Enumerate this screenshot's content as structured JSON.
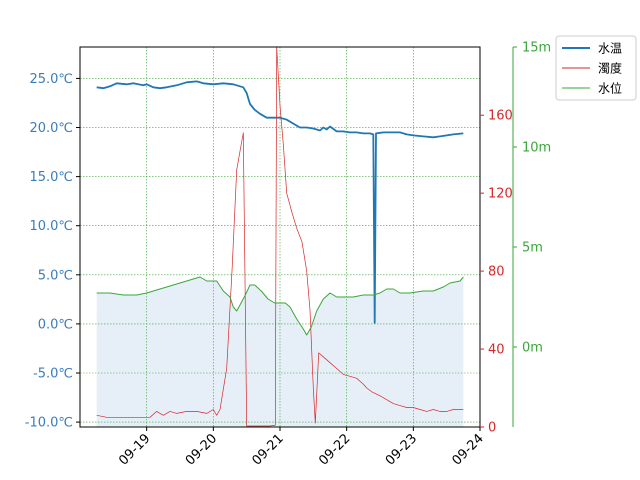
{
  "chart_data": {
    "type": "line",
    "x_ticks": [
      "09-19",
      "09-20",
      "09-21",
      "09-22",
      "09-23",
      "09-24"
    ],
    "x_range": [
      "09-18",
      "09-24"
    ],
    "grid": true,
    "legend_placement": "top-right",
    "axes": {
      "temperature": {
        "ticks": [
          "25.0℃",
          "20.0℃",
          "15.0℃",
          "10.0℃",
          "5.0℃",
          "0.0℃",
          "-5.0℃",
          "-10.0℃"
        ],
        "tick_values": [
          25,
          20,
          15,
          10,
          5,
          0,
          -5,
          -10
        ],
        "range": [
          -10.5,
          28.2
        ],
        "color": "#3b7dba"
      },
      "turbidity": {
        "ticks": [
          "160",
          "120",
          "80",
          "40",
          "0"
        ],
        "tick_values": [
          160,
          120,
          80,
          40,
          0
        ],
        "range": [
          0,
          195
        ],
        "color": "#d62728"
      },
      "water_level": {
        "ticks": [
          "15m",
          "10m",
          "5m",
          "0m"
        ],
        "tick_values": [
          15,
          10,
          5,
          0
        ],
        "range": [
          -4,
          15
        ],
        "color": "#3aa63a"
      }
    },
    "series": [
      {
        "name": "水温",
        "axis": "temperature",
        "color": "#1f77b4",
        "points": [
          [
            0.25,
            24.1
          ],
          [
            0.35,
            24.0
          ],
          [
            0.45,
            24.2
          ],
          [
            0.55,
            24.5
          ],
          [
            0.7,
            24.4
          ],
          [
            0.8,
            24.5
          ],
          [
            0.95,
            24.3
          ],
          [
            1.0,
            24.4
          ],
          [
            1.1,
            24.1
          ],
          [
            1.2,
            24.0
          ],
          [
            1.3,
            24.1
          ],
          [
            1.45,
            24.3
          ],
          [
            1.6,
            24.6
          ],
          [
            1.75,
            24.7
          ],
          [
            1.85,
            24.5
          ],
          [
            2.0,
            24.4
          ],
          [
            2.15,
            24.5
          ],
          [
            2.3,
            24.4
          ],
          [
            2.45,
            24.1
          ],
          [
            2.5,
            23.5
          ],
          [
            2.55,
            22.4
          ],
          [
            2.62,
            21.8
          ],
          [
            2.7,
            21.4
          ],
          [
            2.8,
            21.0
          ],
          [
            2.9,
            21.0
          ],
          [
            3.0,
            21.0
          ],
          [
            3.1,
            20.8
          ],
          [
            3.2,
            20.4
          ],
          [
            3.3,
            20.0
          ],
          [
            3.4,
            20.0
          ],
          [
            3.5,
            19.9
          ],
          [
            3.6,
            19.7
          ],
          [
            3.65,
            20.0
          ],
          [
            3.7,
            19.8
          ],
          [
            3.75,
            20.1
          ],
          [
            3.85,
            19.6
          ],
          [
            3.95,
            19.6
          ],
          [
            4.05,
            19.5
          ],
          [
            4.15,
            19.5
          ],
          [
            4.25,
            19.4
          ],
          [
            4.35,
            19.4
          ],
          [
            4.4,
            19.3
          ],
          [
            4.42,
            0.1
          ],
          [
            4.44,
            19.4
          ],
          [
            4.55,
            19.5
          ],
          [
            4.65,
            19.5
          ],
          [
            4.8,
            19.5
          ],
          [
            4.9,
            19.3
          ],
          [
            5.0,
            19.2
          ],
          [
            5.15,
            19.1
          ],
          [
            5.3,
            19.0
          ],
          [
            5.4,
            19.1
          ],
          [
            5.5,
            19.2
          ],
          [
            5.6,
            19.3
          ],
          [
            5.75,
            19.4
          ]
        ]
      },
      {
        "name": "濁度",
        "axis": "turbidity",
        "color": "#d62728",
        "points": [
          [
            0.25,
            6
          ],
          [
            0.4,
            5
          ],
          [
            0.6,
            5
          ],
          [
            0.8,
            5
          ],
          [
            0.95,
            5
          ],
          [
            1.05,
            5
          ],
          [
            1.15,
            8
          ],
          [
            1.25,
            6
          ],
          [
            1.35,
            8
          ],
          [
            1.45,
            7
          ],
          [
            1.6,
            8
          ],
          [
            1.75,
            8
          ],
          [
            1.9,
            7
          ],
          [
            2.0,
            9
          ],
          [
            2.05,
            6
          ],
          [
            2.1,
            9
          ],
          [
            2.2,
            30
          ],
          [
            2.28,
            80
          ],
          [
            2.35,
            132
          ],
          [
            2.45,
            151
          ],
          [
            2.5,
            0.5
          ],
          [
            2.62,
            0.5
          ],
          [
            2.72,
            0.5
          ],
          [
            2.85,
            0.5
          ],
          [
            2.93,
            1
          ],
          [
            2.95,
            195
          ],
          [
            3.0,
            165
          ],
          [
            3.05,
            145
          ],
          [
            3.1,
            120
          ],
          [
            3.18,
            110
          ],
          [
            3.25,
            102
          ],
          [
            3.33,
            95
          ],
          [
            3.4,
            80
          ],
          [
            3.45,
            60
          ],
          [
            3.5,
            20
          ],
          [
            3.53,
            2
          ],
          [
            3.58,
            38
          ],
          [
            3.65,
            36
          ],
          [
            3.75,
            33
          ],
          [
            3.85,
            30
          ],
          [
            3.95,
            27
          ],
          [
            4.05,
            26
          ],
          [
            4.15,
            25
          ],
          [
            4.25,
            22
          ],
          [
            4.3,
            20
          ],
          [
            4.38,
            18
          ],
          [
            4.5,
            16
          ],
          [
            4.6,
            14
          ],
          [
            4.7,
            12
          ],
          [
            4.8,
            11
          ],
          [
            4.9,
            10
          ],
          [
            5.0,
            10
          ],
          [
            5.1,
            9
          ],
          [
            5.2,
            8
          ],
          [
            5.3,
            9
          ],
          [
            5.4,
            8
          ],
          [
            5.5,
            8
          ],
          [
            5.6,
            9
          ],
          [
            5.75,
            9
          ]
        ]
      },
      {
        "name": "水位",
        "axis": "water_level",
        "color": "#3aa63a",
        "points": [
          [
            0.25,
            2.7
          ],
          [
            0.45,
            2.7
          ],
          [
            0.65,
            2.6
          ],
          [
            0.85,
            2.6
          ],
          [
            1.0,
            2.7
          ],
          [
            1.2,
            2.9
          ],
          [
            1.4,
            3.1
          ],
          [
            1.6,
            3.3
          ],
          [
            1.7,
            3.4
          ],
          [
            1.8,
            3.5
          ],
          [
            1.9,
            3.3
          ],
          [
            2.05,
            3.3
          ],
          [
            2.15,
            2.8
          ],
          [
            2.25,
            2.5
          ],
          [
            2.3,
            2.0
          ],
          [
            2.35,
            1.8
          ],
          [
            2.4,
            2.1
          ],
          [
            2.48,
            2.6
          ],
          [
            2.55,
            3.1
          ],
          [
            2.62,
            3.1
          ],
          [
            2.72,
            2.8
          ],
          [
            2.82,
            2.4
          ],
          [
            2.92,
            2.2
          ],
          [
            3.0,
            2.2
          ],
          [
            3.08,
            2.2
          ],
          [
            3.15,
            2.0
          ],
          [
            3.25,
            1.4
          ],
          [
            3.35,
            0.9
          ],
          [
            3.4,
            0.6
          ],
          [
            3.47,
            1.0
          ],
          [
            3.55,
            1.8
          ],
          [
            3.65,
            2.4
          ],
          [
            3.75,
            2.7
          ],
          [
            3.85,
            2.5
          ],
          [
            3.95,
            2.5
          ],
          [
            4.1,
            2.5
          ],
          [
            4.25,
            2.6
          ],
          [
            4.4,
            2.6
          ],
          [
            4.5,
            2.7
          ],
          [
            4.6,
            2.9
          ],
          [
            4.7,
            2.9
          ],
          [
            4.8,
            2.7
          ],
          [
            4.95,
            2.7
          ],
          [
            5.15,
            2.8
          ],
          [
            5.3,
            2.8
          ],
          [
            5.45,
            3.0
          ],
          [
            5.55,
            3.2
          ],
          [
            5.7,
            3.3
          ],
          [
            5.75,
            3.5
          ]
        ]
      }
    ]
  }
}
